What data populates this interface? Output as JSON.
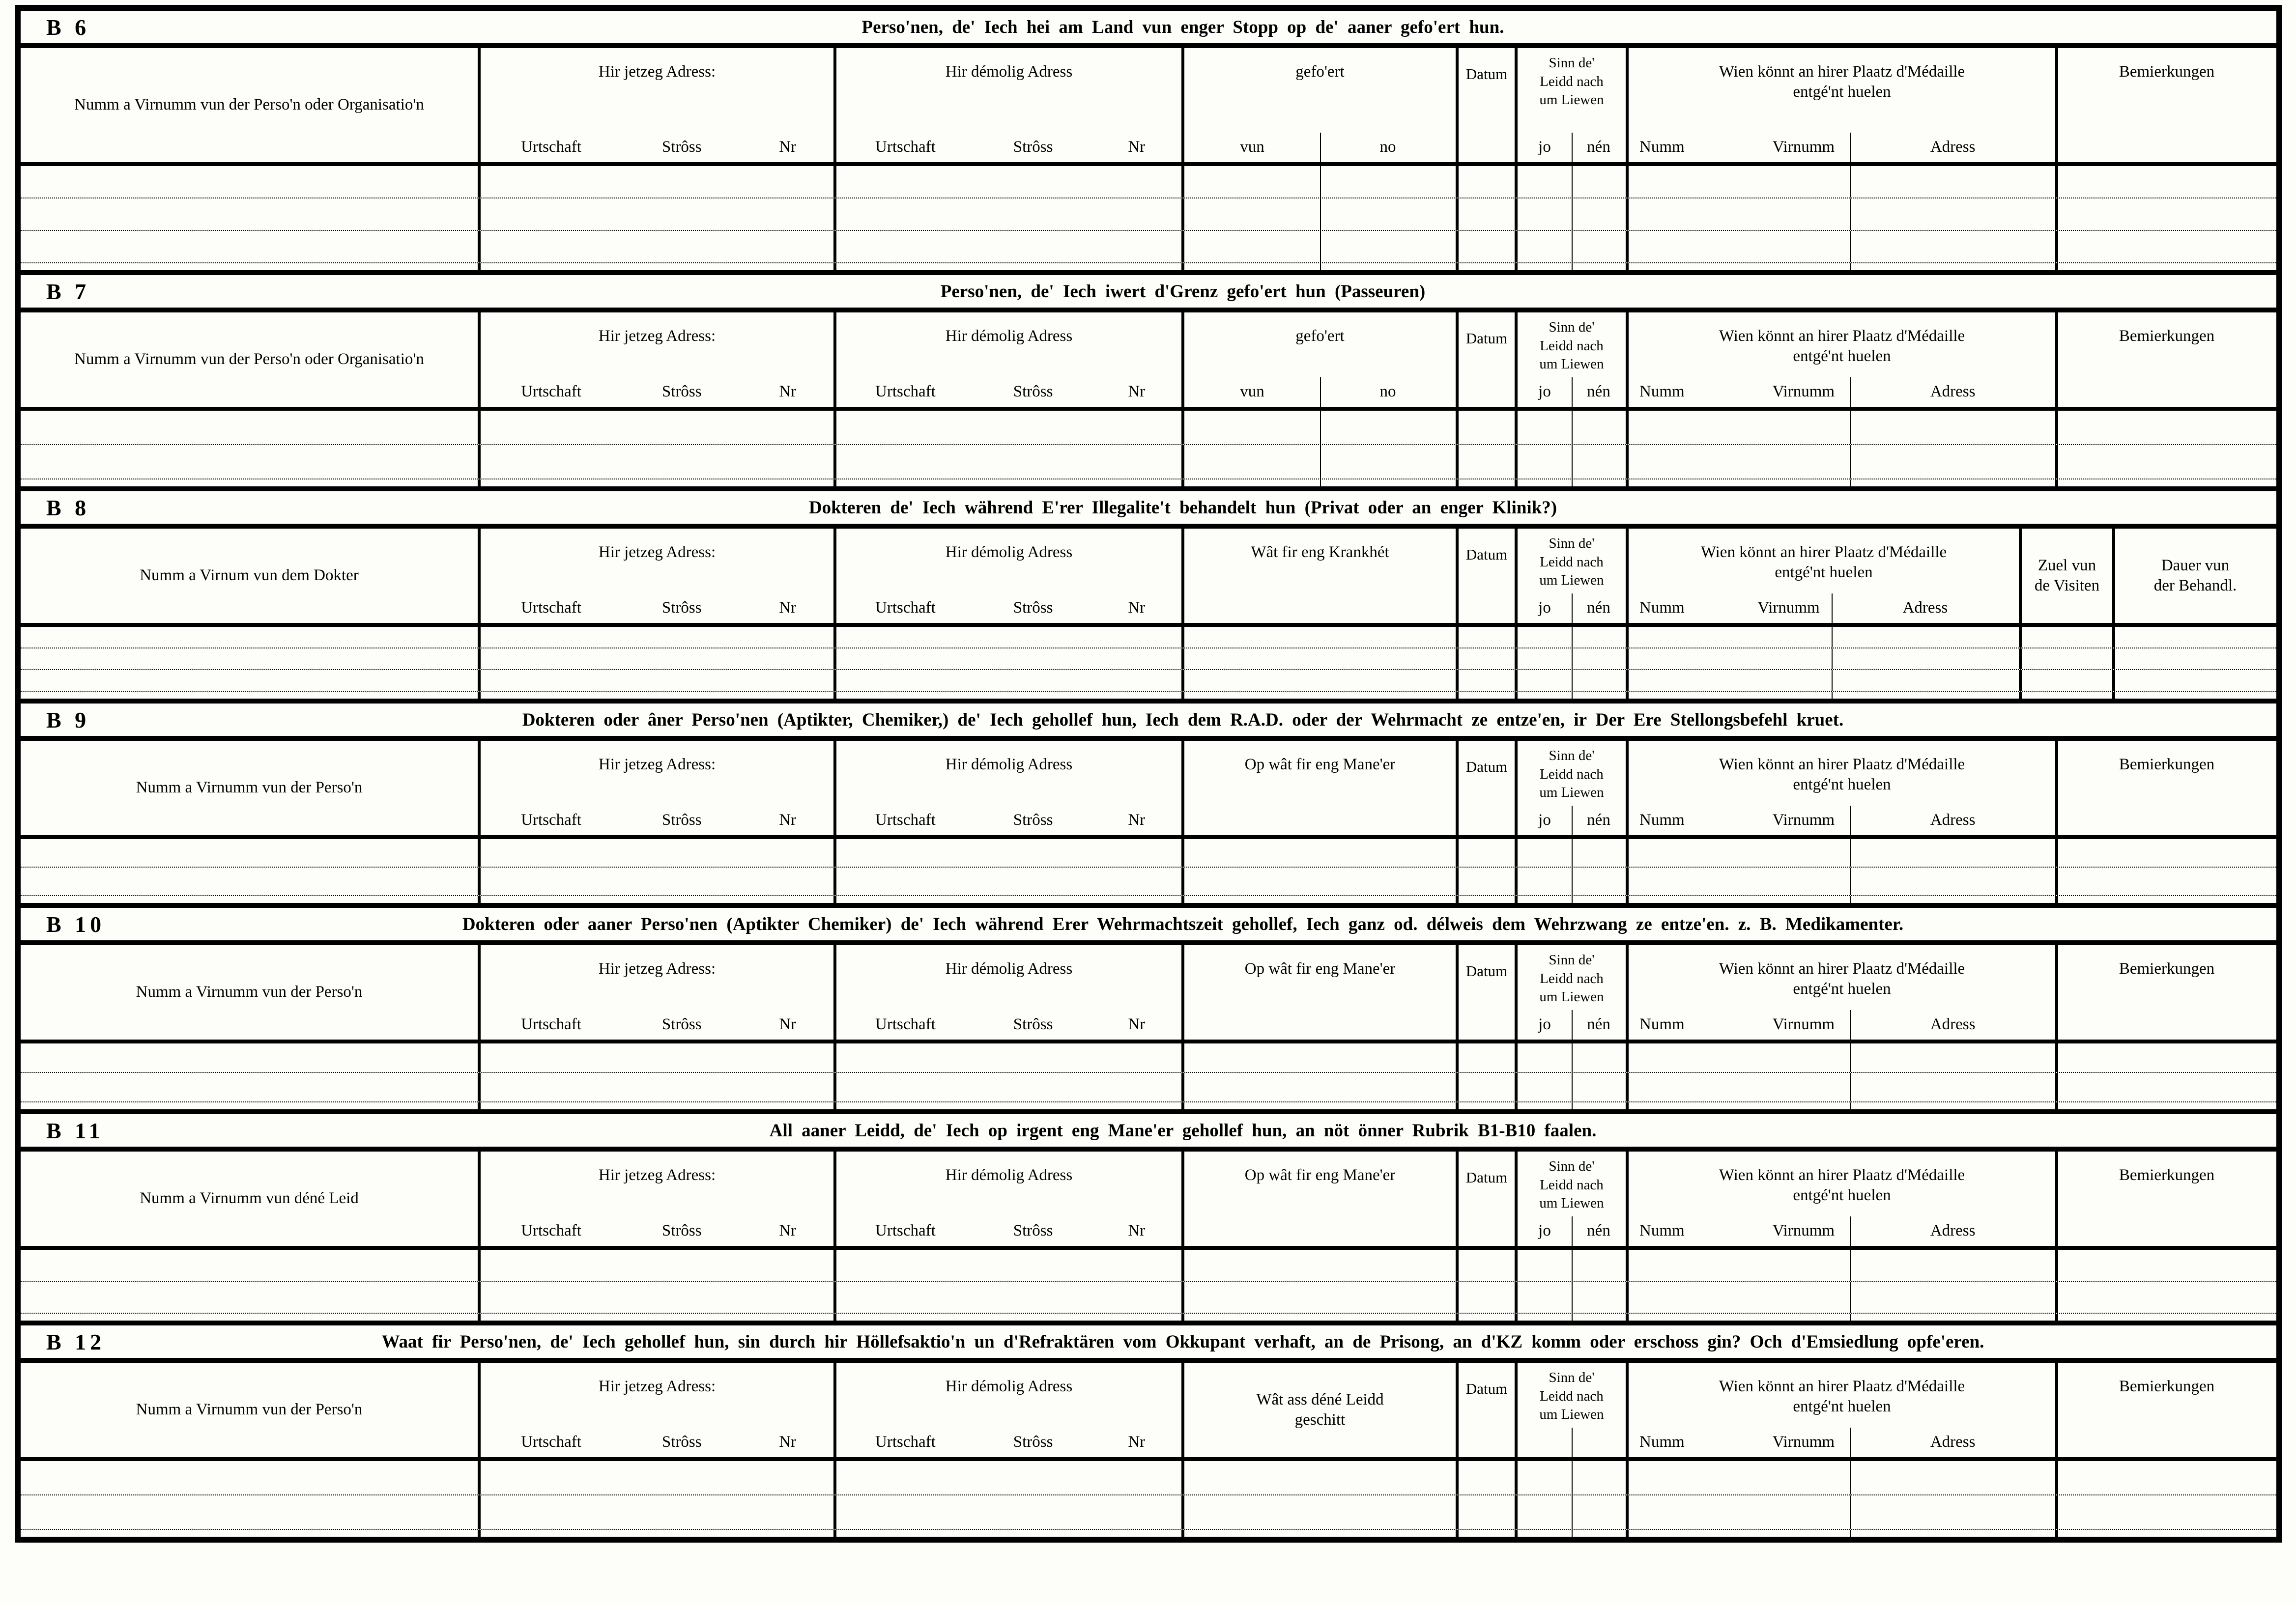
{
  "common": {
    "current_address": "Hir jetzeg Adress:",
    "former_address": "Hir démolig Adress",
    "urtschaft": "Urtschaft",
    "stross": "Strôss",
    "nr": "Nr",
    "gefoert": "gefo'ert",
    "vun": "vun",
    "no": "no",
    "datum": "Datum",
    "sinn_l1": "Sinn de'",
    "sinn_l2": "Leidd nach",
    "sinn_l3": "um Liewen",
    "jo": "jo",
    "nen": "nén",
    "wien_l1": "Wien könnt an hirer Plaatz d'Médaille",
    "wien_l2": "entgé'nt huelen",
    "numm": "Numm",
    "virnumm": "Virnumm",
    "adress": "Adress",
    "bemierkungen": "Bemierkungen"
  },
  "sections": [
    {
      "id": "B 6",
      "title": "Perso'nen, de' Iech hei am Land vun enger Stopp op de' aaner gefo'ert hun.",
      "col1": "Numm a Virnumm vun der Perso'n oder Organisatio'n"
    },
    {
      "id": "B 7",
      "title": "Perso'nen, de' Iech iwert d'Grenz gefo'ert hun (Passeuren)",
      "col1": "Numm a Virnumm vun der Perso'n oder Organisatio'n"
    },
    {
      "id": "B 8",
      "title": "Dokteren de' Iech während E'rer Illegalite't behandelt hun (Privat oder an enger Klinik?)",
      "col1": "Numm a Virnum vun dem Dokter",
      "illness": "Wât fir eng Krankhét",
      "visits_l1": "Zuel vun",
      "visits_l2": "de Visiten",
      "duration_l1": "Dauer vun",
      "duration_l2": "der Behandl."
    },
    {
      "id": "B 9",
      "title": "Dokteren oder âner Perso'nen (Aptikter, Chemiker,) de' Iech gehollef hun, Iech dem R.A.D. oder der Wehrmacht ze entze'en, ir Der Ere Stellongsbefehl kruet.",
      "col1": "Numm a Virnumm vun der Perso'n",
      "manner": "Op wât fir eng Mane'er"
    },
    {
      "id": "B 10",
      "title": "Dokteren oder aaner Perso'nen (Aptikter Chemiker) de' Iech während Erer Wehrmachtszeit gehollef, Iech ganz od. délweis dem Wehrzwang ze entze'en. z. B. Medikamenter.",
      "col1": "Numm a Virnumm vun der Perso'n",
      "manner": "Op wât fir eng Mane'er"
    },
    {
      "id": "B 11",
      "title": "All aaner Leidd, de' Iech op irgent eng Mane'er gehollef hun, an nöt önner Rubrik B1-B10 faalen.",
      "col1": "Numm a Virnumm vun déné Leid",
      "manner": "Op wât fir eng Mane'er"
    },
    {
      "id": "B 12",
      "title": "Waat fir Perso'nen, de' Iech gehollef hun, sin durch hir Höllefsaktio'n un d'Refraktären vom Okkupant verhaft, an de Prisong, an d'KZ komm oder erschoss gin? Och d'Emsiedlung opfe'eren.",
      "col1": "Numm a Virnumm vun der Perso'n",
      "fate_l1": "Wât ass déné Leidd",
      "fate_l2": "geschitt"
    }
  ]
}
